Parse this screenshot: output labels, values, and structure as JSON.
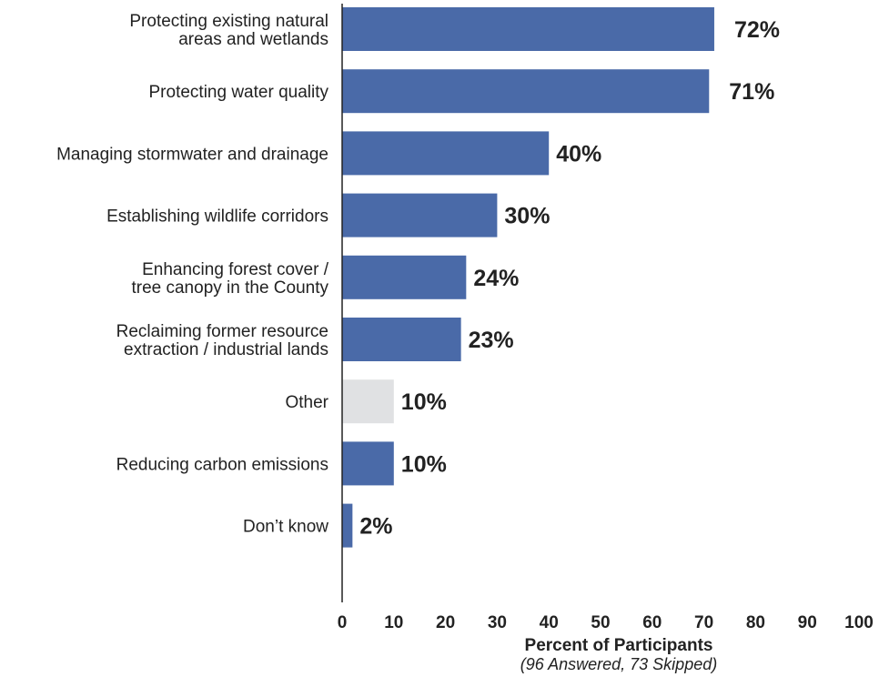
{
  "chart_data": {
    "type": "bar",
    "orientation": "horizontal",
    "categories": [
      [
        "Protecting existing natural",
        "areas and wetlands"
      ],
      [
        "Protecting water quality"
      ],
      [
        "Managing stormwater and drainage"
      ],
      [
        "Establishing wildlife corridors"
      ],
      [
        "Enhancing forest cover /",
        "tree canopy in the County"
      ],
      [
        "Reclaiming former resource",
        "extraction / industrial lands"
      ],
      [
        "Other"
      ],
      [
        "Reducing carbon emissions"
      ],
      [
        "Don’t know"
      ]
    ],
    "values": [
      72,
      71,
      40,
      30,
      24,
      23,
      10,
      10,
      2
    ],
    "value_labels": [
      "72%",
      "71%",
      "40%",
      "30%",
      "24%",
      "23%",
      "10%",
      "10%",
      "2%"
    ],
    "bar_colors": [
      "#4a6aa8",
      "#4a6aa8",
      "#4a6aa8",
      "#4a6aa8",
      "#4a6aa8",
      "#4a6aa8",
      "#e0e1e3",
      "#4a6aa8",
      "#4a6aa8"
    ],
    "xlim": [
      0,
      100
    ],
    "xticks": [
      "0",
      "10",
      "20",
      "30",
      "40",
      "50",
      "60",
      "70",
      "80",
      "90",
      "100"
    ],
    "xlabel": "Percent of Participants",
    "xlabel_sub": "(96 Answered, 73 Skipped)",
    "title": "",
    "grid": false,
    "legend": "none"
  }
}
